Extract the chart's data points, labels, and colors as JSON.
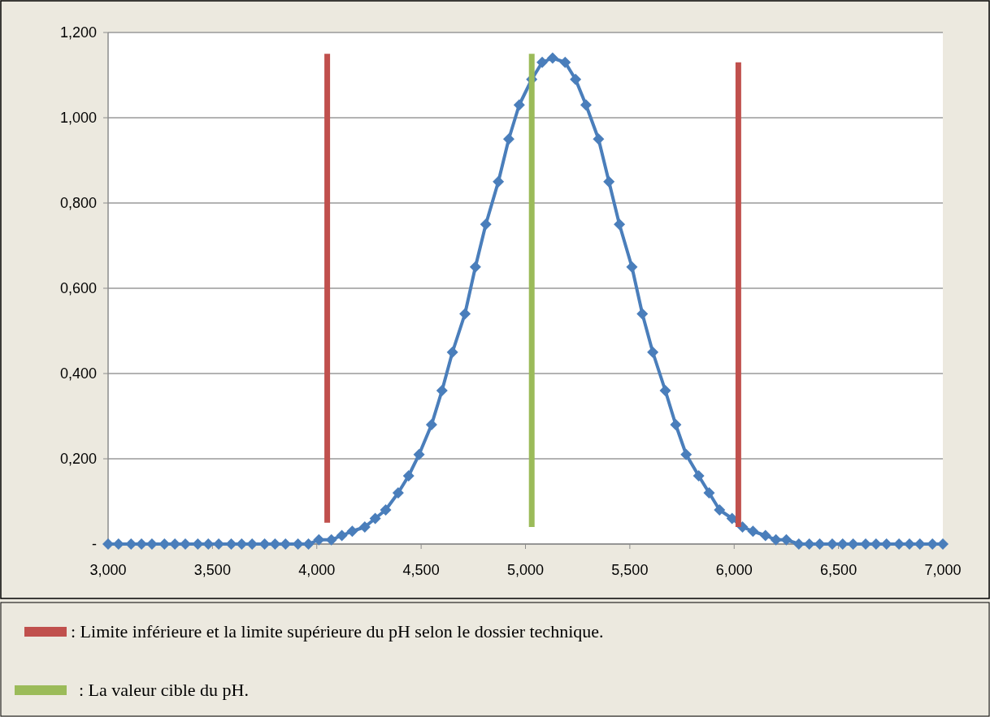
{
  "chart_data": {
    "type": "line",
    "xlim": [
      3,
      7
    ],
    "ylim": [
      0,
      1.2
    ],
    "xticks": [
      {
        "value": 3,
        "label": "3,000"
      },
      {
        "value": 3.5,
        "label": "3,500"
      },
      {
        "value": 4,
        "label": "4,000"
      },
      {
        "value": 4.5,
        "label": "4,500"
      },
      {
        "value": 5,
        "label": "5,000"
      },
      {
        "value": 5.5,
        "label": "5,500"
      },
      {
        "value": 6,
        "label": "6,000"
      },
      {
        "value": 6.5,
        "label": "6,500"
      },
      {
        "value": 7,
        "label": "7,000"
      }
    ],
    "yticks": [
      {
        "value": 0,
        "label": "-"
      },
      {
        "value": 0.2,
        "label": "0,200"
      },
      {
        "value": 0.4,
        "label": "0,400"
      },
      {
        "value": 0.6,
        "label": "0,600"
      },
      {
        "value": 0.8,
        "label": "0,800"
      },
      {
        "value": 1,
        "label": "1,000"
      },
      {
        "value": 1.2,
        "label": "1,200"
      }
    ],
    "grid": "y",
    "legend": "bottom",
    "series": [
      {
        "color": "#4a7ebb",
        "marker": "diamond",
        "x": [
          3.0,
          3.05,
          3.11,
          3.16,
          3.21,
          3.27,
          3.32,
          3.37,
          3.43,
          3.48,
          3.53,
          3.59,
          3.64,
          3.69,
          3.75,
          3.8,
          3.85,
          3.91,
          3.96,
          4.01,
          4.07,
          4.12,
          4.17,
          4.23,
          4.28,
          4.33,
          4.39,
          4.44,
          4.49,
          4.55,
          4.6,
          4.65,
          4.71,
          4.76,
          4.81,
          4.87,
          4.92,
          4.97,
          5.03,
          5.08,
          5.13,
          5.19,
          5.24,
          5.29,
          5.35,
          5.4,
          5.45,
          5.51,
          5.56,
          5.61,
          5.67,
          5.72,
          5.77,
          5.83,
          5.88,
          5.93,
          5.99,
          6.04,
          6.09,
          6.15,
          6.2,
          6.25,
          6.31,
          6.36,
          6.41,
          6.47,
          6.52,
          6.57,
          6.63,
          6.68,
          6.73,
          6.79,
          6.84,
          6.89,
          6.95,
          7.0
        ],
        "values": [
          0,
          0,
          0,
          0,
          0,
          0,
          0,
          0,
          0,
          0,
          0,
          0,
          0,
          0,
          0,
          0,
          0,
          0,
          0,
          0.01,
          0.01,
          0.02,
          0.03,
          0.04,
          0.06,
          0.08,
          0.12,
          0.16,
          0.21,
          0.28,
          0.36,
          0.45,
          0.54,
          0.65,
          0.75,
          0.85,
          0.95,
          1.03,
          1.09,
          1.13,
          1.14,
          1.13,
          1.09,
          1.03,
          0.95,
          0.85,
          0.75,
          0.65,
          0.54,
          0.45,
          0.36,
          0.28,
          0.21,
          0.16,
          0.12,
          0.08,
          0.06,
          0.04,
          0.03,
          0.02,
          0.01,
          0.01,
          0,
          0,
          0,
          0,
          0,
          0,
          0,
          0,
          0,
          0,
          0,
          0,
          0,
          0
        ]
      },
      {
        "name": ": Limite inférieure et la limite supérieure du pH selon le dossier technique.",
        "color": "#c0504d",
        "marker": "none",
        "x": [
          4.05,
          4.05
        ],
        "values": [
          0.05,
          1.15
        ]
      },
      {
        "color": "#c0504d",
        "marker": "none",
        "x": [
          6.02,
          6.02
        ],
        "values": [
          0.04,
          1.13
        ]
      },
      {
        "name": ": La valeur cible du pH.",
        "color": "#9bbb59",
        "marker": "none",
        "x": [
          5.03,
          5.03
        ],
        "values": [
          0.04,
          1.15
        ]
      }
    ]
  }
}
